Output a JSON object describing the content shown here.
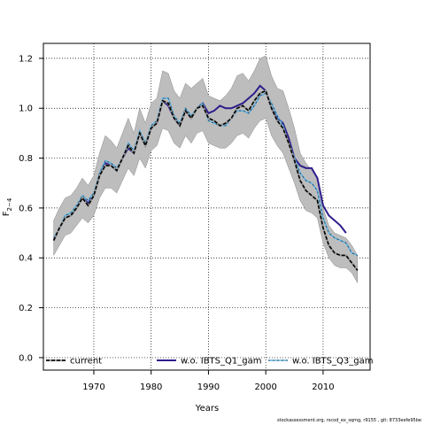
{
  "chart_data": {
    "type": "line",
    "xlabel": "Years",
    "ylabel": "F",
    "ylabel_sub": "2−4",
    "xlim": [
      1961.2,
      2018.2
    ],
    "ylim": [
      -0.05,
      1.26
    ],
    "xticks": [
      1970,
      1980,
      1990,
      2000,
      2010
    ],
    "yticks": [
      0.0,
      0.2,
      0.4,
      0.6,
      0.8,
      1.0,
      1.2
    ],
    "ytick_labels": [
      "0.0",
      "0.2",
      "0.4",
      "0.6",
      "0.8",
      "1.0",
      "1.2"
    ],
    "grid": true,
    "legend_position": "bottom",
    "x": [
      1963,
      1964,
      1965,
      1966,
      1967,
      1968,
      1969,
      1970,
      1971,
      1972,
      1973,
      1974,
      1975,
      1976,
      1977,
      1978,
      1979,
      1980,
      1981,
      1982,
      1983,
      1984,
      1985,
      1986,
      1987,
      1988,
      1989,
      1990,
      1991,
      1992,
      1993,
      1994,
      1995,
      1996,
      1997,
      1998,
      1999,
      2000,
      2001,
      2002,
      2003,
      2004,
      2005,
      2006,
      2007,
      2008,
      2009,
      2010,
      2011,
      2012,
      2013,
      2014,
      2015,
      2016
    ],
    "series": [
      {
        "name": "current",
        "color": "#000000",
        "style": "dashed-with-grey",
        "values": [
          0.47,
          0.52,
          0.56,
          0.57,
          0.6,
          0.64,
          0.61,
          0.65,
          0.73,
          0.77,
          0.77,
          0.75,
          0.8,
          0.85,
          0.82,
          0.9,
          0.85,
          0.92,
          0.94,
          1.03,
          1.02,
          0.96,
          0.93,
          0.99,
          0.96,
          1.0,
          1.01,
          0.96,
          0.95,
          0.93,
          0.94,
          0.96,
          1.0,
          1.01,
          0.99,
          1.03,
          1.06,
          1.07,
          1.0,
          0.95,
          0.92,
          0.86,
          0.79,
          0.71,
          0.67,
          0.65,
          0.63,
          0.52,
          0.45,
          0.42,
          0.41,
          0.41,
          0.38,
          0.35
        ]
      },
      {
        "name": "w.o. IBTS_Q1_gam",
        "color": "#2e1e8c",
        "style": "solid",
        "values": [
          0.47,
          0.52,
          0.56,
          0.57,
          0.6,
          0.64,
          0.62,
          0.65,
          0.73,
          0.78,
          0.77,
          0.75,
          0.8,
          0.84,
          0.82,
          0.9,
          0.85,
          0.92,
          0.94,
          1.03,
          1.01,
          0.96,
          0.93,
          0.99,
          0.96,
          1.0,
          1.02,
          0.98,
          0.99,
          1.01,
          1.0,
          1.0,
          1.01,
          1.02,
          1.04,
          1.06,
          1.09,
          1.07,
          1.0,
          0.96,
          0.94,
          0.88,
          0.8,
          0.77,
          0.76,
          0.76,
          0.72,
          0.61,
          0.57,
          0.55,
          0.53,
          0.5,
          null,
          null
        ]
      },
      {
        "name": "w.o. IBTS_Q3_gam",
        "color": "#5ab4e8",
        "style": "dashed-with-colour",
        "values": [
          0.48,
          0.52,
          0.57,
          0.58,
          0.61,
          0.65,
          0.63,
          0.66,
          0.74,
          0.79,
          0.78,
          0.76,
          0.8,
          0.86,
          0.83,
          0.91,
          0.86,
          0.93,
          0.95,
          1.04,
          1.04,
          0.97,
          0.94,
          1.0,
          0.97,
          1.0,
          1.02,
          0.95,
          0.94,
          0.93,
          0.93,
          0.96,
          0.99,
          0.99,
          0.98,
          1.01,
          1.05,
          1.06,
          1.02,
          0.97,
          0.93,
          0.86,
          0.8,
          0.74,
          0.71,
          0.7,
          0.67,
          0.56,
          0.5,
          0.48,
          0.47,
          0.46,
          0.42,
          0.41
        ]
      }
    ],
    "confidence_band": {
      "color": "#bdbdbd",
      "upper": [
        0.55,
        0.6,
        0.64,
        0.65,
        0.68,
        0.72,
        0.69,
        0.73,
        0.82,
        0.89,
        0.87,
        0.84,
        0.9,
        0.96,
        0.9,
        1.0,
        0.94,
        1.02,
        1.04,
        1.15,
        1.14,
        1.07,
        1.04,
        1.1,
        1.08,
        1.1,
        1.12,
        1.05,
        1.04,
        1.03,
        1.05,
        1.08,
        1.13,
        1.14,
        1.11,
        1.15,
        1.2,
        1.21,
        1.13,
        1.08,
        1.07,
        1.0,
        0.92,
        0.82,
        0.78,
        0.75,
        0.72,
        0.6,
        0.53,
        0.5,
        0.49,
        0.48,
        0.45,
        0.41
      ],
      "lower": [
        0.41,
        0.45,
        0.49,
        0.5,
        0.53,
        0.56,
        0.54,
        0.57,
        0.64,
        0.68,
        0.68,
        0.66,
        0.71,
        0.76,
        0.73,
        0.8,
        0.76,
        0.83,
        0.85,
        0.92,
        0.91,
        0.86,
        0.84,
        0.89,
        0.86,
        0.9,
        0.91,
        0.86,
        0.85,
        0.84,
        0.84,
        0.86,
        0.89,
        0.9,
        0.88,
        0.92,
        0.95,
        0.96,
        0.89,
        0.85,
        0.82,
        0.76,
        0.7,
        0.63,
        0.59,
        0.58,
        0.56,
        0.46,
        0.4,
        0.37,
        0.36,
        0.36,
        0.34,
        0.3
      ]
    }
  },
  "footer": "stockassessment.org, rscod_ex_sqmg, r9155 , git: 8733eefe95be"
}
